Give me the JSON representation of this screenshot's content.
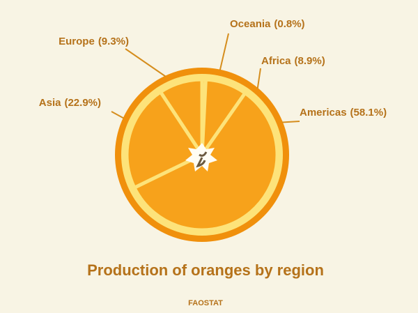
{
  "chart_data": {
    "type": "pie",
    "title": "Production of oranges by region",
    "source": "FAOSTAT",
    "categories": [
      "Oceania",
      "Africa",
      "Americas",
      "Asia",
      "Europe"
    ],
    "values": [
      0.8,
      8.9,
      58.1,
      22.9,
      9.3
    ],
    "value_labels": [
      "(0.8%)",
      "(8.9%)",
      "(58.1%)",
      "(22.9%)",
      "(9.3%)"
    ],
    "color": "#f7a21b"
  }
}
